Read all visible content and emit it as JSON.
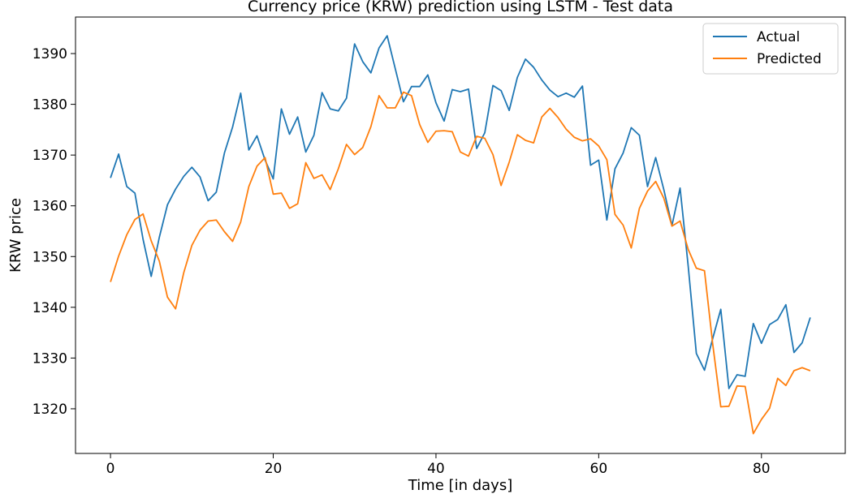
{
  "chart_data": {
    "type": "line",
    "title": "Currency price (KRW) prediction using LSTM - Test data",
    "xlabel": "Time [in days]",
    "ylabel": "KRW price",
    "xlim": [
      -4.3,
      90.3
    ],
    "ylim": [
      1311.2,
      1397.2
    ],
    "xticks": [
      0,
      20,
      40,
      60,
      80
    ],
    "yticks": [
      1320,
      1330,
      1340,
      1350,
      1360,
      1370,
      1380,
      1390
    ],
    "grid": false,
    "legend_position": "top-right",
    "x": [
      0,
      1,
      2,
      3,
      4,
      5,
      6,
      7,
      8,
      9,
      10,
      11,
      12,
      13,
      14,
      15,
      16,
      17,
      18,
      19,
      20,
      21,
      22,
      23,
      24,
      25,
      26,
      27,
      28,
      29,
      30,
      31,
      32,
      33,
      34,
      35,
      36,
      37,
      38,
      39,
      40,
      41,
      42,
      43,
      44,
      45,
      46,
      47,
      48,
      49,
      50,
      51,
      52,
      53,
      54,
      55,
      56,
      57,
      58,
      59,
      60,
      61,
      62,
      63,
      64,
      65,
      66,
      67,
      68,
      69,
      70,
      71,
      72,
      73,
      74,
      75,
      76,
      77,
      78,
      79,
      80,
      81,
      82,
      83,
      84,
      85,
      86
    ],
    "series": [
      {
        "name": "Actual",
        "color": "#1f77b4",
        "values": [
          1365.5,
          1370.2,
          1363.8,
          1362.5,
          1353.4,
          1346.1,
          1353.8,
          1360.2,
          1363.3,
          1365.8,
          1367.6,
          1365.7,
          1361.0,
          1362.7,
          1370.4,
          1375.5,
          1382.2,
          1371.0,
          1373.8,
          1369.0,
          1365.3,
          1379.1,
          1374.1,
          1377.5,
          1370.6,
          1373.9,
          1382.3,
          1379.1,
          1378.7,
          1381.2,
          1391.9,
          1388.4,
          1386.2,
          1391.1,
          1393.5,
          1387.0,
          1380.5,
          1383.5,
          1383.5,
          1385.8,
          1380.3,
          1376.7,
          1382.9,
          1382.5,
          1383.0,
          1371.3,
          1374.4,
          1383.7,
          1382.7,
          1378.8,
          1385.3,
          1388.9,
          1387.3,
          1384.8,
          1382.8,
          1381.5,
          1382.2,
          1381.4,
          1383.6,
          1368.0,
          1369.0,
          1357.2,
          1367.3,
          1370.4,
          1375.4,
          1373.9,
          1363.8,
          1369.5,
          1363.2,
          1356.1,
          1363.5,
          1348.1,
          1330.9,
          1327.6,
          1333.8,
          1339.6,
          1324.0,
          1326.7,
          1326.4,
          1336.8,
          1332.9,
          1336.6,
          1337.6,
          1340.5,
          1331.1,
          1333.0,
          1338.0
        ]
      },
      {
        "name": "Predicted",
        "color": "#ff7f0e",
        "values": [
          1345.0,
          1350.1,
          1354.3,
          1357.3,
          1358.4,
          1353.1,
          1349.1,
          1342.0,
          1339.7,
          1346.8,
          1352.2,
          1355.2,
          1357.0,
          1357.2,
          1354.9,
          1353.0,
          1356.8,
          1363.8,
          1367.8,
          1369.5,
          1362.3,
          1362.5,
          1359.5,
          1360.4,
          1368.5,
          1365.4,
          1366.1,
          1363.2,
          1367.3,
          1372.1,
          1370.1,
          1371.5,
          1375.6,
          1381.7,
          1379.3,
          1379.3,
          1382.4,
          1381.7,
          1376.0,
          1372.5,
          1374.7,
          1374.8,
          1374.6,
          1370.6,
          1369.8,
          1373.7,
          1373.3,
          1370.1,
          1364.0,
          1368.6,
          1374.0,
          1372.9,
          1372.4,
          1377.5,
          1379.2,
          1377.4,
          1375.1,
          1373.5,
          1372.8,
          1373.2,
          1371.8,
          1369.1,
          1358.3,
          1356.2,
          1351.7,
          1359.5,
          1362.9,
          1364.8,
          1361.5,
          1356.0,
          1357.0,
          1351.4,
          1347.7,
          1347.2,
          1332.9,
          1320.4,
          1320.5,
          1324.5,
          1324.4,
          1315.1,
          1317.9,
          1320.1,
          1326.0,
          1324.6,
          1327.5,
          1328.1,
          1327.5
        ]
      }
    ]
  }
}
